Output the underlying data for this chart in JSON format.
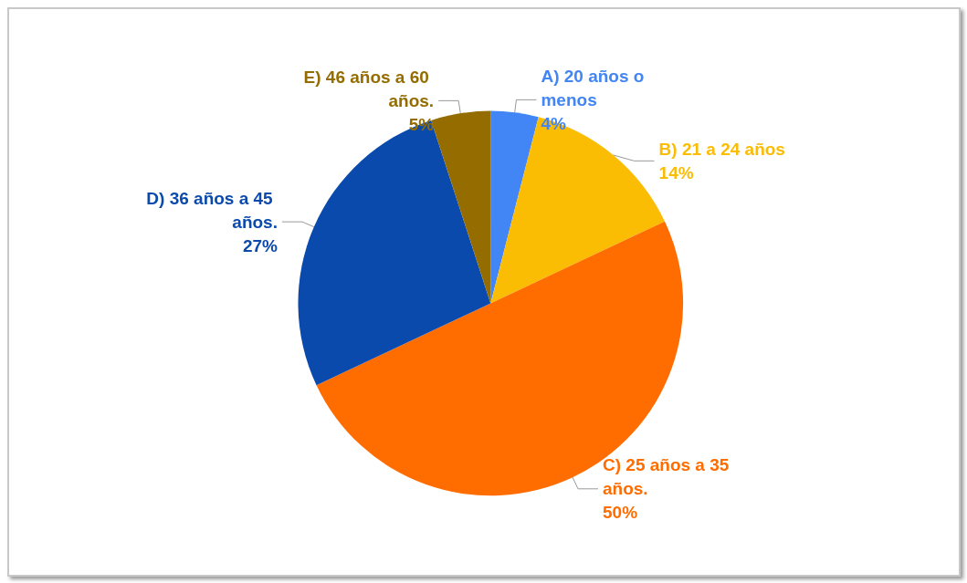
{
  "chart_data": {
    "type": "pie",
    "categories": [
      "A) 20 años o menos",
      "B) 21 a 24 años",
      "C) 25 años a 35 años.",
      "D) 36 años a 45 años.",
      "E) 46 años a 60 años."
    ],
    "values": [
      4,
      14,
      50,
      27,
      5
    ],
    "colors": [
      "#4285f4",
      "#fbbc04",
      "#ff6d01",
      "#0b4aad",
      "#946c00"
    ],
    "value_labels": [
      "4%",
      "14%",
      "50%",
      "27%",
      "5%"
    ],
    "legend": false
  }
}
